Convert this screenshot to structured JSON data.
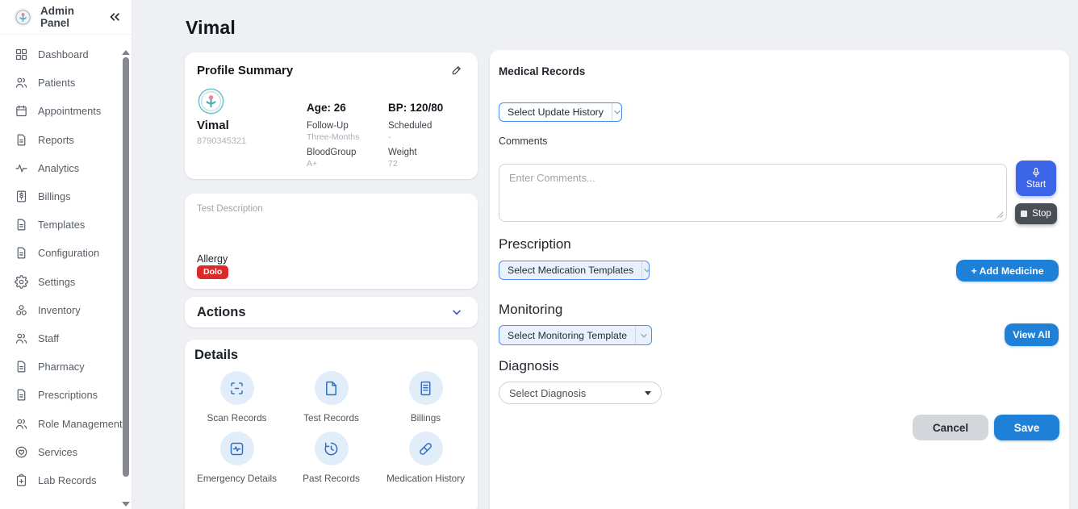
{
  "sidebar": {
    "title": "Admin Panel",
    "items": [
      {
        "label": "Dashboard",
        "icon": "dashboard-icon"
      },
      {
        "label": "Patients",
        "icon": "patients-icon"
      },
      {
        "label": "Appointments",
        "icon": "calendar-icon"
      },
      {
        "label": "Reports",
        "icon": "document-icon"
      },
      {
        "label": "Analytics",
        "icon": "pulse-icon"
      },
      {
        "label": "Billings",
        "icon": "billing-icon"
      },
      {
        "label": "Templates",
        "icon": "document-icon"
      },
      {
        "label": "Configuration",
        "icon": "document-icon"
      },
      {
        "label": "Settings",
        "icon": "gear-icon"
      },
      {
        "label": "Inventory",
        "icon": "boxes-icon"
      },
      {
        "label": "Staff",
        "icon": "people-icon"
      },
      {
        "label": "Pharmacy",
        "icon": "document-icon"
      },
      {
        "label": "Prescriptions",
        "icon": "document-icon"
      },
      {
        "label": "Role Management",
        "icon": "people-icon"
      },
      {
        "label": "Services",
        "icon": "heart-hand-icon"
      },
      {
        "label": "Lab Records",
        "icon": "clipboard-plus-icon"
      }
    ]
  },
  "page": {
    "title": "Vimal"
  },
  "profile": {
    "card_title": "Profile Summary",
    "name": "Vimal",
    "phone": "8790345321",
    "age_label": "Age: 26",
    "bp_label": "BP: 120/80",
    "fields": [
      {
        "label": "Follow-Up",
        "value": "Three-Months"
      },
      {
        "label": "Scheduled",
        "value": "-"
      },
      {
        "label": "BloodGroup",
        "value": "A+"
      },
      {
        "label": "Weight",
        "value": "72"
      }
    ]
  },
  "description": {
    "placeholder": "Test Description",
    "allergy_label": "Allergy",
    "allergy_value": "Dolo"
  },
  "actions": {
    "title": "Actions"
  },
  "details": {
    "title": "Details",
    "items": [
      {
        "label": "Scan Records",
        "icon": "scan-icon"
      },
      {
        "label": "Test Records",
        "icon": "file-icon"
      },
      {
        "label": "Billings",
        "icon": "receipt-icon"
      },
      {
        "label": "Emergency Details",
        "icon": "emergency-icon"
      },
      {
        "label": "Past Records",
        "icon": "history-icon"
      },
      {
        "label": "Medication History",
        "icon": "pill-icon"
      }
    ]
  },
  "medical_records": {
    "title": "Medical Records",
    "update_history_dropdown": "Select Update History",
    "comments_label": "Comments",
    "comments_placeholder": "Enter Comments...",
    "start_button": "Start",
    "stop_button": "Stop"
  },
  "prescription": {
    "title": "Prescription",
    "dropdown": "Select Medication Templates",
    "add_medicine_button": "+ Add Medicine"
  },
  "monitoring": {
    "title": "Monitoring",
    "dropdown": "Select Monitoring Template",
    "view_all_button": "View All"
  },
  "diagnosis": {
    "title": "Diagnosis",
    "dropdown": "Select Diagnosis"
  },
  "footer": {
    "cancel_button": "Cancel",
    "save_button": "Save"
  },
  "colors": {
    "accent_blue": "#1f80d8",
    "start_blue": "#3c64e6",
    "stop_dark": "#4a4f57",
    "danger_red": "#d92b2b",
    "detail_icon_blue": "#2f6fc0",
    "page_background": "#eef0f3"
  }
}
